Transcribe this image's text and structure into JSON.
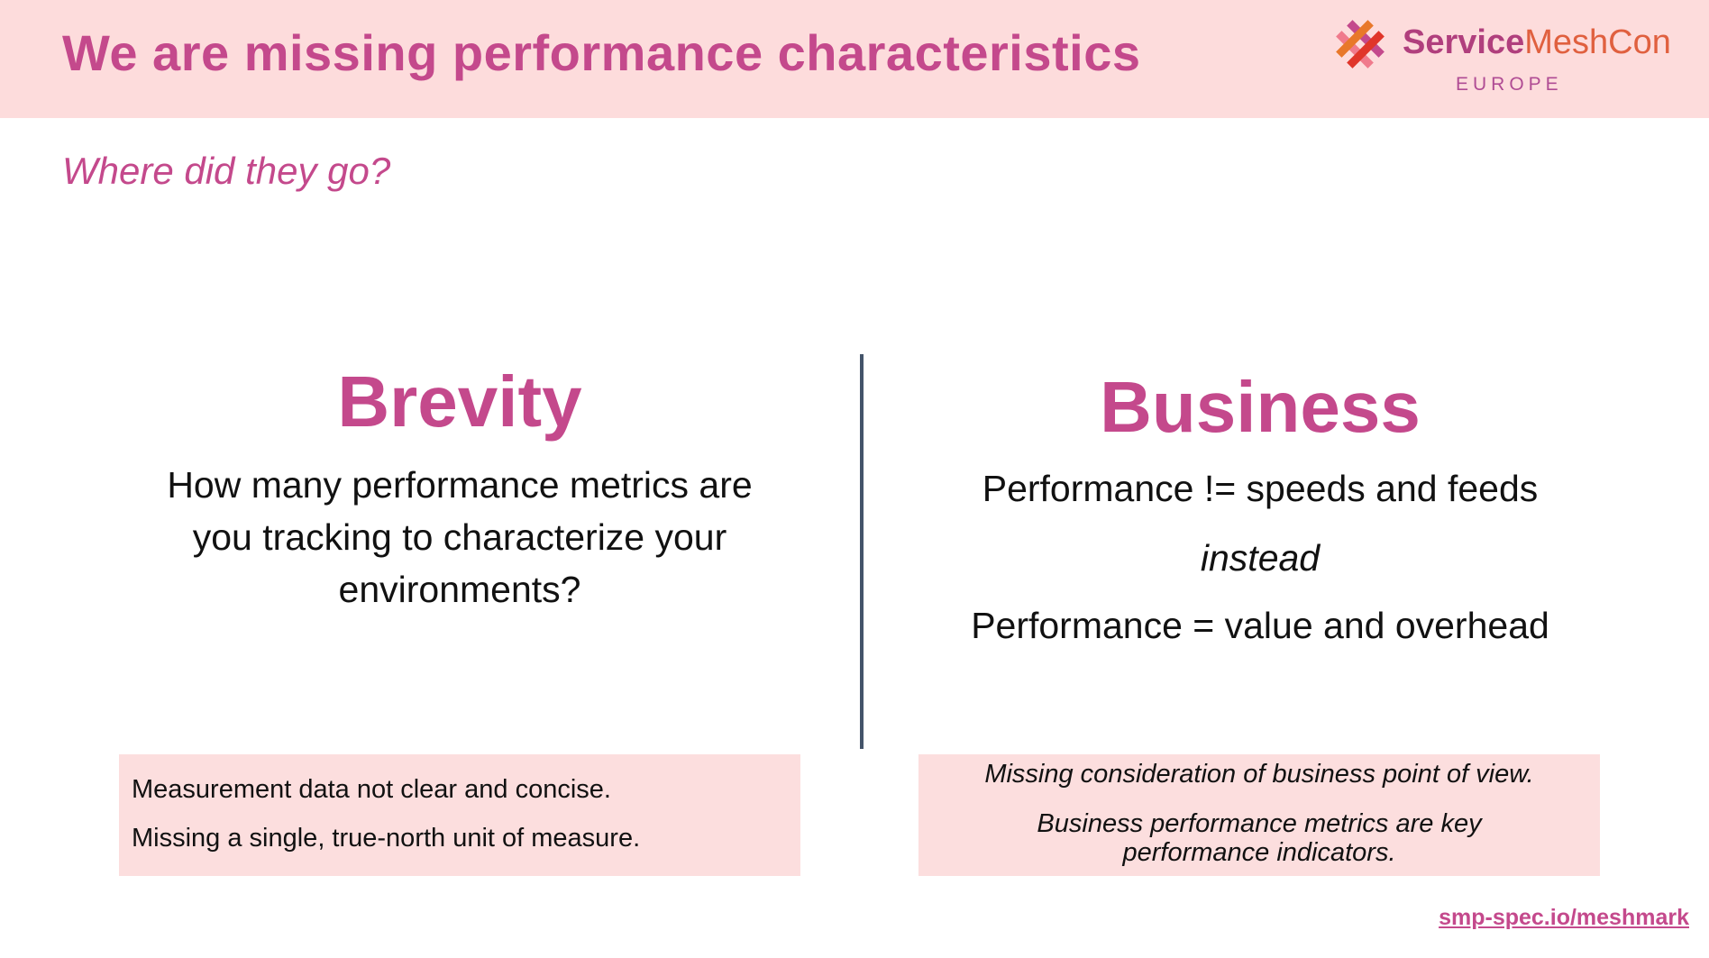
{
  "header": {
    "title": "We are missing performance characteristics",
    "logo": {
      "name_bold": "Service",
      "name_rest": "MeshCon",
      "region": "EUROPE",
      "icon": "servicemeshcon-logo-icon"
    }
  },
  "subtitle": "Where did they go?",
  "left": {
    "heading": "Brevity",
    "lines": [
      "How many performance metrics are",
      "you tracking to characterize your",
      "environments?"
    ],
    "box": [
      "Measurement data not clear and concise.",
      "Missing a single, true-north unit of measure."
    ]
  },
  "right": {
    "heading": "Business",
    "line1": "Performance != speeds and feeds",
    "line2": "instead",
    "line3": "Performance = value and overhead",
    "box": [
      "Missing consideration of business point of view.",
      "Business performance metrics are key",
      "performance indicators."
    ]
  },
  "footer": {
    "link": "smp-spec.io/meshmark"
  },
  "colors": {
    "accent": "#c4498c",
    "header_bg": "#fddcdc",
    "box_bg": "#fcdede",
    "divider": "#44546a"
  }
}
